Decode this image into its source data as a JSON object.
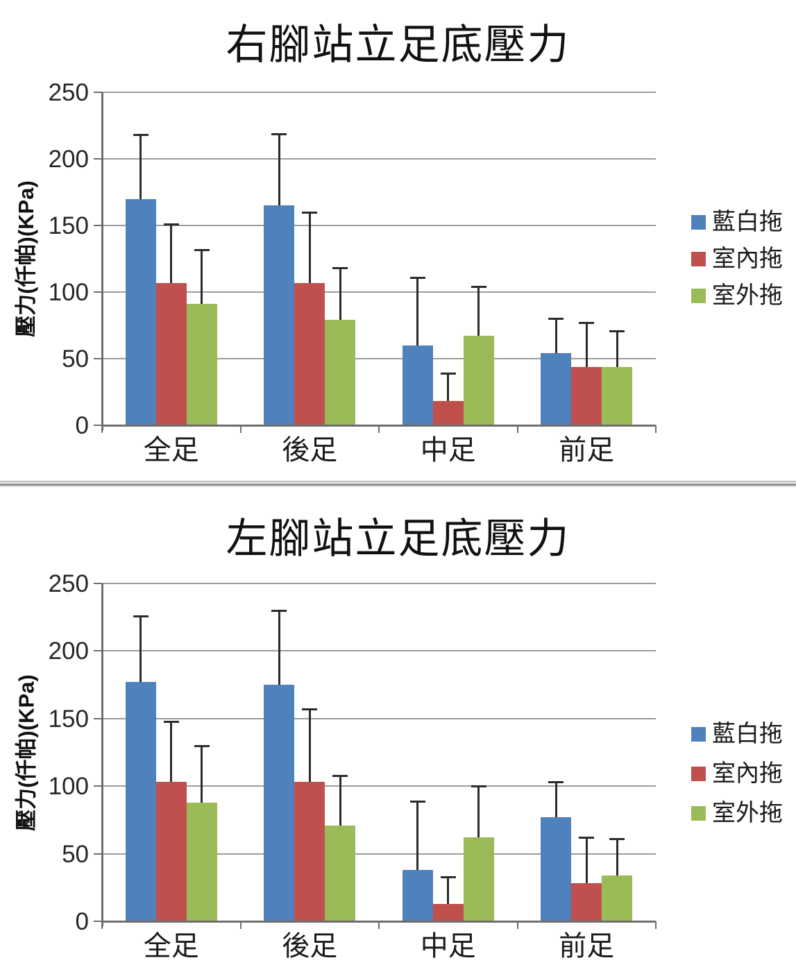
{
  "page": {
    "background_color": "#ffffff"
  },
  "divider": {
    "top_line_color": "#bdbdbd",
    "bottom_line_color": "#8f8f8f"
  },
  "chart_data": [
    {
      "key": "right-foot",
      "type": "bar",
      "title": "右腳站立足底壓力",
      "ylabel": "壓力(仟帕)(KPa)",
      "xlabel": "",
      "unit": "KPa",
      "ylim": [
        0,
        250
      ],
      "yticks": [
        0,
        50,
        100,
        150,
        200,
        250
      ],
      "grid": true,
      "legend_position": "right",
      "error_bars": "upper-whisker",
      "categories": [
        "全足",
        "後足",
        "中足",
        "前足"
      ],
      "series": [
        {
          "key": "blue-white-slipper",
          "name": "藍白拖",
          "color": "#4F81BD",
          "values": [
            170,
            165,
            60,
            54
          ],
          "error_top": [
            218,
            219,
            111,
            80
          ]
        },
        {
          "key": "indoor-slipper",
          "name": "室內拖",
          "color": "#C0504D",
          "values": [
            107,
            107,
            18,
            44
          ],
          "error_top": [
            151,
            160,
            39,
            77
          ]
        },
        {
          "key": "outdoor-slipper",
          "name": "室外拖",
          "color": "#9BBB59",
          "values": [
            91,
            79,
            67,
            44
          ],
          "error_top": [
            132,
            118,
            104,
            71
          ]
        }
      ]
    },
    {
      "key": "left-foot",
      "type": "bar",
      "title": "左腳站立足底壓力",
      "ylabel": "壓力(仟帕)(KPa)",
      "xlabel": "",
      "unit": "KPa",
      "ylim": [
        0,
        250
      ],
      "yticks": [
        0,
        50,
        100,
        150,
        200,
        250
      ],
      "grid": true,
      "legend_position": "right",
      "error_bars": "upper-whisker",
      "categories": [
        "全足",
        "後足",
        "中足",
        "前足"
      ],
      "series": [
        {
          "key": "blue-white-slipper",
          "name": "藍白拖",
          "color": "#4F81BD",
          "values": [
            177,
            175,
            38,
            77
          ],
          "error_top": [
            226,
            230,
            89,
            103
          ]
        },
        {
          "key": "indoor-slipper",
          "name": "室內拖",
          "color": "#C0504D",
          "values": [
            103,
            103,
            13,
            28
          ],
          "error_top": [
            148,
            157,
            33,
            62
          ]
        },
        {
          "key": "outdoor-slipper",
          "name": "室外拖",
          "color": "#9BBB59",
          "values": [
            88,
            71,
            62,
            34
          ],
          "error_top": [
            130,
            108,
            100,
            61
          ]
        }
      ]
    }
  ]
}
